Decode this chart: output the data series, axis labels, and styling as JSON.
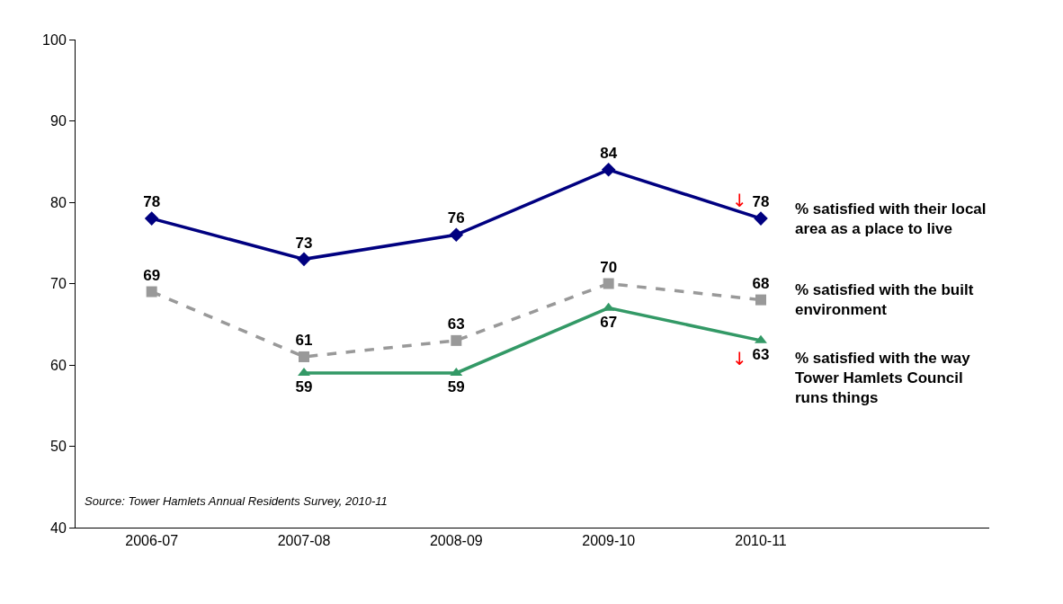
{
  "chart_data": {
    "type": "line",
    "categories": [
      "2006-07",
      "2007-08",
      "2008-09",
      "2009-10",
      "2010-11",
      null
    ],
    "series": [
      {
        "name": "% satisfied with their local area as a place to live",
        "color": "#000080",
        "values": [
          78,
          73,
          76,
          84,
          78,
          null
        ],
        "marker": "diamond",
        "line_style": "solid"
      },
      {
        "name": "% satisfied with the built environment",
        "color": "#999999",
        "values": [
          69,
          61,
          63,
          70,
          68,
          null
        ],
        "marker": "square",
        "line_style": "dashed"
      },
      {
        "name": "% satisfied with the way Tower Hamlets Council runs things",
        "color": "#339966",
        "values": [
          null,
          59,
          59,
          67,
          63,
          null
        ],
        "marker": "triangle",
        "line_style": "solid"
      }
    ],
    "ylim": [
      40,
      100
    ],
    "yticks": [
      40,
      50,
      60,
      70,
      80,
      90,
      100
    ],
    "data_labels": true,
    "legend": false,
    "annotations": [
      "Source: Tower Hamlets Annual Residents Survey, 2010-11",
      {
        "text": "↓",
        "x": "2010-11",
        "y": 78
      },
      {
        "text": "↓",
        "x": "2010-11",
        "y": 63
      }
    ]
  }
}
